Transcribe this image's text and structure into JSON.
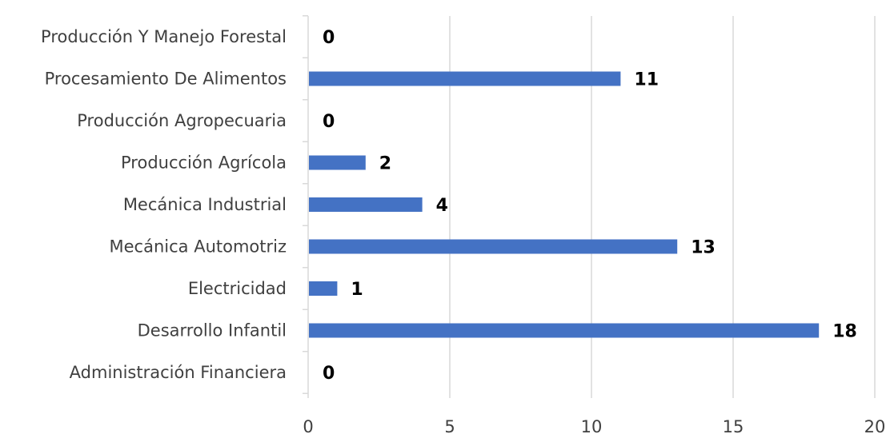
{
  "chart_data": {
    "type": "bar",
    "orientation": "horizontal",
    "categories": [
      "Producción Y Manejo Forestal",
      "Procesamiento De Alimentos",
      "Producción Agropecuaria",
      "Producción Agrícola",
      "Mecánica Industrial",
      "Mecánica Automotriz",
      "Electricidad",
      "Desarrollo Infantil",
      "Administración Financiera"
    ],
    "values": [
      0,
      11,
      0,
      2,
      4,
      13,
      1,
      18,
      0
    ],
    "data_labels": [
      "0",
      "11",
      "0",
      "2",
      "4",
      "13",
      "1",
      "18",
      "0"
    ],
    "xlim": [
      0,
      20
    ],
    "xticks": [
      "0",
      "5",
      "10",
      "15",
      "20"
    ],
    "grid": true,
    "legend": "none",
    "colors": {
      "bar": "#4472C4",
      "grid": "#d9d9d9",
      "axis": "#d9d9d9"
    }
  }
}
